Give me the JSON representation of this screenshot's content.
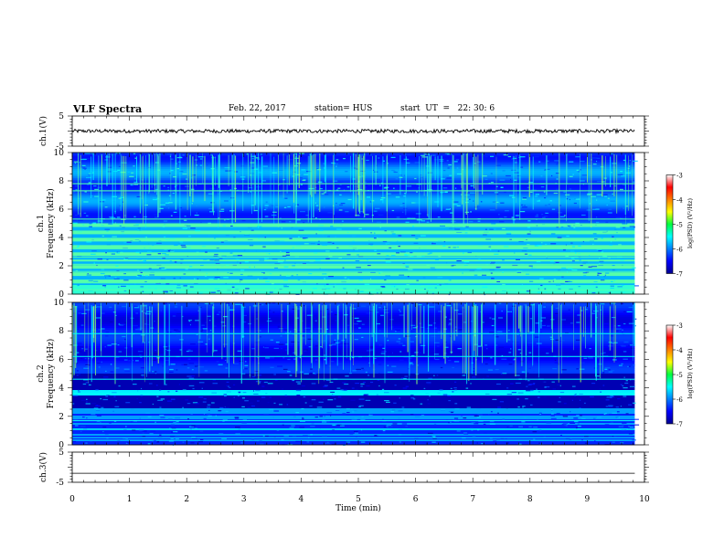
{
  "header": {
    "title": "VLF Spectra",
    "date": "Feb. 22, 2017",
    "station_label": "station= HUS",
    "start_label": "start  UT  =   22: 30: 6"
  },
  "chart_data": [
    {
      "type": "line",
      "name": "ch1-waveform",
      "ylabel": "ch.1(V)",
      "ylim": [
        -5,
        5
      ],
      "yticks": [
        "5",
        "-5"
      ],
      "xlim": [
        0,
        10
      ],
      "signal_level": 0,
      "signal_amplitude": 0.6,
      "signal_end_min": 9.83
    },
    {
      "type": "heatmap",
      "name": "ch1-spectrogram",
      "ylabel": "Frequency (kHz)",
      "channel_label": "ch.1",
      "ylim": [
        0,
        10
      ],
      "yticks": [
        "0",
        "2",
        "4",
        "6",
        "8",
        "10"
      ],
      "xlim": [
        0,
        10
      ],
      "colorbar": {
        "label": "log(PSD) (V²/Hz)",
        "range": [
          -7,
          -3
        ],
        "ticks": [
          "-3",
          "-4",
          "-5",
          "-6",
          "-7"
        ]
      }
    },
    {
      "type": "heatmap",
      "name": "ch2-spectrogram",
      "ylabel": "Frequency (kHz)",
      "channel_label": "ch.2",
      "ylim": [
        0,
        10
      ],
      "yticks": [
        "0",
        "2",
        "4",
        "6",
        "8",
        "10"
      ],
      "xlim": [
        0,
        10
      ],
      "colorbar": {
        "label": "log(PSD) (V²/Hz)",
        "range": [
          -7,
          -3
        ],
        "ticks": [
          "-3",
          "-4",
          "-5",
          "-6",
          "-7"
        ]
      }
    },
    {
      "type": "line",
      "name": "ch3-waveform",
      "ylabel": "ch.3(V)",
      "ylim": [
        -5,
        5
      ],
      "yticks": [
        "5",
        "-5"
      ],
      "xlim": [
        0,
        10
      ],
      "signal_level": -2,
      "signal_amplitude": 0,
      "signal_end_min": 9.83
    }
  ],
  "x_axis": {
    "label": "Time (min)",
    "range": [
      0,
      10
    ],
    "ticks": [
      "0",
      "1",
      "2",
      "3",
      "4",
      "5",
      "6",
      "7",
      "8",
      "9",
      "10"
    ]
  }
}
